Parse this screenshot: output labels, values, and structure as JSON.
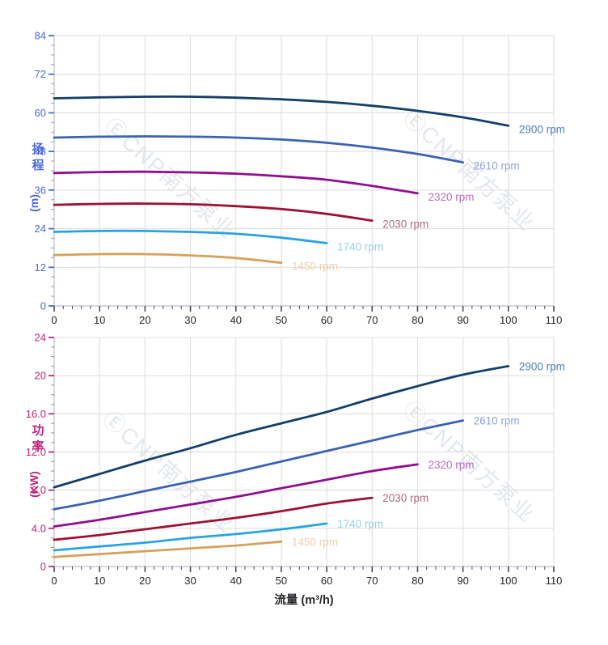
{
  "watermark": {
    "text": "ⒺCNP南方泵业",
    "color": "#ccd4e1"
  },
  "x_axis": {
    "label": "流量 (m³/h)",
    "min": 0,
    "max": 110,
    "major_step": 10,
    "minor_step": 2,
    "tick_labels": [
      "0",
      "10",
      "20",
      "30",
      "40",
      "50",
      "60",
      "70",
      "80",
      "90",
      "100",
      "110"
    ],
    "tick_color": "#26262b"
  },
  "chart_data": [
    {
      "type": "line",
      "id": "head-chart",
      "ylabel": "扬程 (m)",
      "ylabel_chars": [
        "扬",
        "程"
      ],
      "ylabel_unit": "(m)",
      "xlabel": "流量 (m³/h)",
      "ylim": [
        0,
        84
      ],
      "y_major_step": 12,
      "y_minor_step": 3,
      "y_tick_labels": [
        "0",
        "12",
        "24",
        "36",
        "48",
        "60",
        "72",
        "84"
      ],
      "axis_color": "#4a68d8",
      "grid": true,
      "legend_position": "end-of-curve",
      "series": [
        {
          "name": "2900 rpm",
          "color": "#133f6a",
          "label_color": "#4e80b8",
          "points": [
            [
              0,
              64.5
            ],
            [
              10,
              64.8
            ],
            [
              20,
              65.0
            ],
            [
              30,
              65.0
            ],
            [
              40,
              64.7
            ],
            [
              50,
              64.2
            ],
            [
              60,
              63.4
            ],
            [
              70,
              62.2
            ],
            [
              80,
              60.6
            ],
            [
              90,
              58.6
            ],
            [
              100,
              56.0
            ]
          ]
        },
        {
          "name": "2610 rpm",
          "color": "#3a63b2",
          "label_color": "#8fa3da",
          "points": [
            [
              0,
              52.3
            ],
            [
              10,
              52.6
            ],
            [
              20,
              52.7
            ],
            [
              30,
              52.6
            ],
            [
              40,
              52.3
            ],
            [
              50,
              51.7
            ],
            [
              60,
              50.7
            ],
            [
              70,
              49.2
            ],
            [
              80,
              47.2
            ],
            [
              90,
              44.6
            ]
          ]
        },
        {
          "name": "2320 rpm",
          "color": "#8e0f90",
          "label_color": "#bc6cc0",
          "points": [
            [
              0,
              41.3
            ],
            [
              10,
              41.6
            ],
            [
              20,
              41.7
            ],
            [
              30,
              41.5
            ],
            [
              40,
              41.1
            ],
            [
              50,
              40.3
            ],
            [
              60,
              39.2
            ],
            [
              70,
              37.3
            ],
            [
              80,
              35.0
            ]
          ]
        },
        {
          "name": "2030 rpm",
          "color": "#9e1131",
          "label_color": "#b26b80",
          "points": [
            [
              0,
              31.4
            ],
            [
              10,
              31.7
            ],
            [
              20,
              31.8
            ],
            [
              30,
              31.6
            ],
            [
              40,
              31.0
            ],
            [
              50,
              30.1
            ],
            [
              60,
              28.6
            ],
            [
              70,
              26.5
            ]
          ]
        },
        {
          "name": "1740 rpm",
          "color": "#29a3e2",
          "label_color": "#92d1f2",
          "points": [
            [
              0,
              23.0
            ],
            [
              10,
              23.3
            ],
            [
              20,
              23.3
            ],
            [
              30,
              23.0
            ],
            [
              40,
              22.4
            ],
            [
              50,
              21.2
            ],
            [
              60,
              19.5
            ]
          ]
        },
        {
          "name": "1450 rpm",
          "color": "#d7a05c",
          "label_color": "#ead0ab",
          "points": [
            [
              0,
              15.8
            ],
            [
              10,
              16.1
            ],
            [
              20,
              16.1
            ],
            [
              30,
              15.7
            ],
            [
              40,
              14.9
            ],
            [
              50,
              13.4
            ]
          ]
        }
      ]
    },
    {
      "type": "line",
      "id": "power-chart",
      "ylabel": "功率 (KW)",
      "ylabel_chars": [
        "功",
        "率"
      ],
      "ylabel_unit": "(KW)",
      "xlabel": "流量 (m³/h)",
      "ylim": [
        0,
        24
      ],
      "y_major_step": 4,
      "y_minor_step": 1,
      "y_tick_labels": [
        "0",
        "4.0",
        "8.0",
        "12.0",
        "16.0",
        "20",
        "24"
      ],
      "axis_color": "#c22478",
      "grid": true,
      "legend_position": "end-of-curve",
      "series": [
        {
          "name": "2900 rpm",
          "color": "#133f6a",
          "label_color": "#4e80b8",
          "points": [
            [
              0,
              8.3
            ],
            [
              10,
              9.7
            ],
            [
              20,
              11.1
            ],
            [
              30,
              12.4
            ],
            [
              40,
              13.8
            ],
            [
              50,
              15.0
            ],
            [
              60,
              16.2
            ],
            [
              70,
              17.6
            ],
            [
              80,
              18.9
            ],
            [
              90,
              20.1
            ],
            [
              100,
              21.0
            ]
          ]
        },
        {
          "name": "2610 rpm",
          "color": "#3a63b2",
          "label_color": "#8fa3da",
          "points": [
            [
              0,
              6.0
            ],
            [
              10,
              6.9
            ],
            [
              20,
              7.9
            ],
            [
              30,
              8.9
            ],
            [
              40,
              9.9
            ],
            [
              50,
              11.0
            ],
            [
              60,
              12.1
            ],
            [
              70,
              13.2
            ],
            [
              80,
              14.3
            ],
            [
              90,
              15.3
            ]
          ]
        },
        {
          "name": "2320 rpm",
          "color": "#8e0f90",
          "label_color": "#bc6cc0",
          "points": [
            [
              0,
              4.2
            ],
            [
              10,
              4.9
            ],
            [
              20,
              5.7
            ],
            [
              30,
              6.5
            ],
            [
              40,
              7.3
            ],
            [
              50,
              8.2
            ],
            [
              60,
              9.1
            ],
            [
              70,
              10.0
            ],
            [
              80,
              10.7
            ]
          ]
        },
        {
          "name": "2030 rpm",
          "color": "#9e1131",
          "label_color": "#b26b80",
          "points": [
            [
              0,
              2.8
            ],
            [
              10,
              3.3
            ],
            [
              20,
              3.9
            ],
            [
              30,
              4.5
            ],
            [
              40,
              5.1
            ],
            [
              50,
              5.8
            ],
            [
              60,
              6.6
            ],
            [
              70,
              7.2
            ]
          ]
        },
        {
          "name": "1740 rpm",
          "color": "#29a3e2",
          "label_color": "#92d1f2",
          "points": [
            [
              0,
              1.7
            ],
            [
              10,
              2.1
            ],
            [
              20,
              2.5
            ],
            [
              30,
              3.0
            ],
            [
              40,
              3.4
            ],
            [
              50,
              3.9
            ],
            [
              60,
              4.5
            ]
          ]
        },
        {
          "name": "1450 rpm",
          "color": "#d7a05c",
          "label_color": "#ead0ab",
          "points": [
            [
              0,
              1.0
            ],
            [
              10,
              1.3
            ],
            [
              20,
              1.6
            ],
            [
              30,
              1.9
            ],
            [
              40,
              2.2
            ],
            [
              50,
              2.6
            ]
          ]
        }
      ]
    }
  ]
}
